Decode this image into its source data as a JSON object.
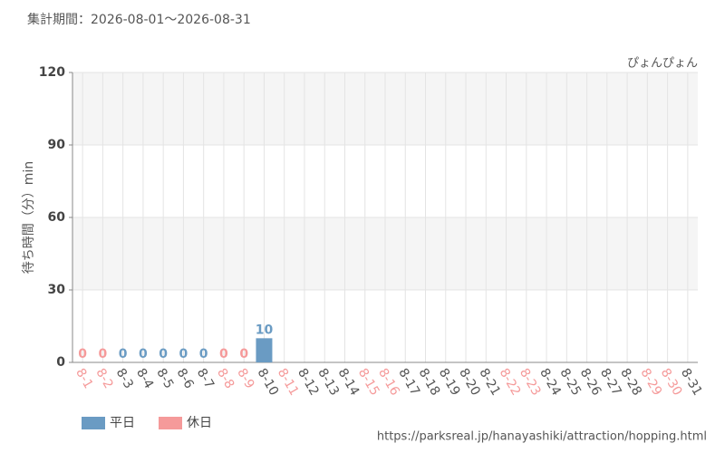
{
  "chart_data": {
    "type": "bar",
    "title": "集計期間：2026-08-01〜2026-08-31",
    "subtitle": "ぴょんぴょん",
    "y_label": "待ち時間（分）min",
    "source": "https://parksreal.jp/hanayashiki/attraction/hopping.html",
    "categories": [
      "8-1",
      "8-2",
      "8-3",
      "8-4",
      "8-5",
      "8-6",
      "8-7",
      "8-8",
      "8-9",
      "8-10",
      "8-11",
      "8-12",
      "8-13",
      "8-14",
      "8-15",
      "8-16",
      "8-17",
      "8-18",
      "8-19",
      "8-20",
      "8-21",
      "8-22",
      "8-23",
      "8-24",
      "8-25",
      "8-26",
      "8-27",
      "8-28",
      "8-29",
      "8-30",
      "8-31"
    ],
    "category_colors": [
      "#f59a9a",
      "#f59a9a",
      "#555555",
      "#555555",
      "#555555",
      "#555555",
      "#555555",
      "#f59a9a",
      "#f59a9a",
      "#555555",
      "#f59a9a",
      "#555555",
      "#555555",
      "#555555",
      "#f59a9a",
      "#f59a9a",
      "#555555",
      "#555555",
      "#555555",
      "#555555",
      "#555555",
      "#f59a9a",
      "#f59a9a",
      "#555555",
      "#555555",
      "#555555",
      "#555555",
      "#555555",
      "#f59a9a",
      "#f59a9a",
      "#555555"
    ],
    "series": [
      {
        "name": "平日",
        "color": "#6a9bc3",
        "values": [
          null,
          null,
          0,
          0,
          0,
          0,
          0,
          null,
          null,
          10,
          null,
          null,
          null,
          null,
          null,
          null,
          null,
          null,
          null,
          null,
          null,
          null,
          null,
          null,
          null,
          null,
          null,
          null,
          null,
          null,
          null
        ]
      },
      {
        "name": "休日",
        "color": "#f59a9a",
        "values": [
          0,
          0,
          null,
          null,
          null,
          null,
          null,
          0,
          0,
          null,
          null,
          null,
          null,
          null,
          null,
          null,
          null,
          null,
          null,
          null,
          null,
          null,
          null,
          null,
          null,
          null,
          null,
          null,
          null,
          null,
          null
        ]
      }
    ],
    "ylim": [
      0,
      120
    ],
    "yticks": [
      0,
      30,
      60,
      90,
      120
    ],
    "grid": true,
    "legend": "bottom-left"
  }
}
